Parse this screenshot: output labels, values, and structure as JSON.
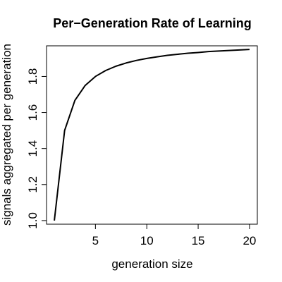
{
  "chart_data": {
    "type": "line",
    "title": "Per−Generation Rate of Learning",
    "xlabel": "generation size",
    "ylabel": "signals aggregated per generation",
    "xlim": [
      0.24,
      20.76
    ],
    "ylim": [
      0.98,
      1.97
    ],
    "xticks": [
      5,
      10,
      15,
      20
    ],
    "yticks": [
      1.0,
      1.2,
      1.4,
      1.6,
      1.8
    ],
    "xtick_labels": [
      "5",
      "10",
      "15",
      "20"
    ],
    "ytick_labels": [
      "1.0",
      "1.2",
      "1.4",
      "1.6",
      "1.8"
    ],
    "grid": false,
    "legend": "none",
    "line_color": "#000000",
    "series": [
      {
        "x": [
          1,
          2,
          3,
          4,
          5,
          6,
          7,
          8,
          9,
          10,
          11,
          12,
          13,
          14,
          15,
          16,
          17,
          18,
          19,
          20
        ],
        "y": [
          1.0,
          1.5,
          1.667,
          1.75,
          1.8,
          1.833,
          1.857,
          1.875,
          1.889,
          1.9,
          1.909,
          1.917,
          1.923,
          1.929,
          1.933,
          1.938,
          1.941,
          1.944,
          1.947,
          1.95
        ]
      }
    ]
  }
}
